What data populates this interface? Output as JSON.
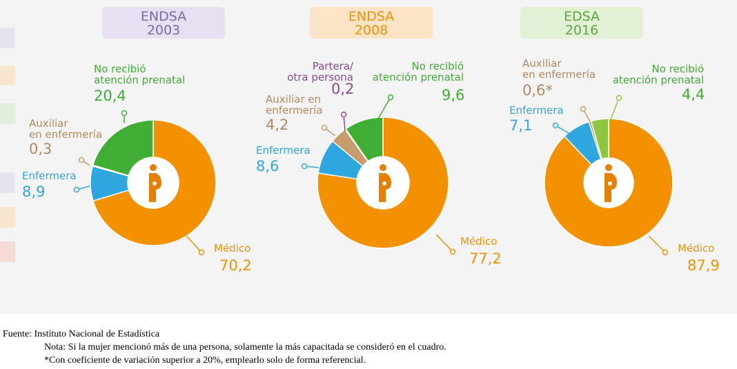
{
  "colors": {
    "medico": "#f39100",
    "enfermera": "#2ea7df",
    "auxiliar": "#c69c6d",
    "partera": "#8b4b8f",
    "no_recibio": "#3fae33",
    "no_recibio_2016": "#8dc63f",
    "center_icon": "#e67e00"
  },
  "chart_data": [
    {
      "type": "pie",
      "title": "ENDSA 2003",
      "title_line1": "ENDSA",
      "title_line2": "2003",
      "title_color": "#7b6aa8",
      "badge_bg": "#e6e0f0",
      "slices": [
        {
          "key": "medico",
          "label": "Médico",
          "value": 70.2,
          "value_text": "70,2",
          "color": "#f39100"
        },
        {
          "key": "enfermera",
          "label": "Enfermera",
          "value": 8.9,
          "value_text": "8,9",
          "color": "#2ea7df"
        },
        {
          "key": "auxiliar",
          "label": "Auxiliar en enfermería",
          "label_line1": "Auxiliar",
          "label_line2": "en enfermería",
          "value": 0.3,
          "value_text": "0,3",
          "color": "#c69c6d"
        },
        {
          "key": "no_recibio",
          "label": "No recibió atención prenatal",
          "label_line1": "No recibió",
          "label_line2": "atención prenatal",
          "value": 20.4,
          "value_text": "20,4",
          "color": "#3fae33"
        }
      ]
    },
    {
      "type": "pie",
      "title": "ENDSA 2008",
      "title_line1": "ENDSA",
      "title_line2": "2008",
      "title_color": "#f39100",
      "badge_bg": "#fde4c6",
      "slices": [
        {
          "key": "medico",
          "label": "Médico",
          "value": 77.2,
          "value_text": "77,2",
          "color": "#f39100"
        },
        {
          "key": "enfermera",
          "label": "Enfermera",
          "value": 8.6,
          "value_text": "8,6",
          "color": "#2ea7df"
        },
        {
          "key": "auxiliar",
          "label": "Auxiliar en enfermería",
          "label_line1": "Auxiliar en",
          "label_line2": "enfermería",
          "value": 4.2,
          "value_text": "4,2",
          "color": "#c69c6d"
        },
        {
          "key": "partera",
          "label": "Partera/ otra persona",
          "label_line1": "Partera/",
          "label_line2": "otra persona",
          "value": 0.2,
          "value_text": "0,2",
          "color": "#8b4b8f"
        },
        {
          "key": "no_recibio",
          "label": "No recibió atención prenatal",
          "label_line1": "No recibió",
          "label_line2": "atención prenatal",
          "value": 9.6,
          "value_text": "9,6",
          "color": "#3fae33"
        }
      ]
    },
    {
      "type": "pie",
      "title": "EDSA 2016",
      "title_line1": "EDSA",
      "title_line2": "2016",
      "title_color": "#5aa83c",
      "badge_bg": "#e2f0d6",
      "slices": [
        {
          "key": "medico",
          "label": "Médico",
          "value": 87.9,
          "value_text": "87,9",
          "color": "#f39100"
        },
        {
          "key": "enfermera",
          "label": "Enfermera",
          "value": 7.1,
          "value_text": "7,1",
          "color": "#2ea7df"
        },
        {
          "key": "auxiliar",
          "label": "Auxiliar en enfermería",
          "label_line1": "Auxiliar",
          "label_line2": "en enfermería",
          "value": 0.6,
          "value_text": "0,6*",
          "color": "#c69c6d"
        },
        {
          "key": "no_recibio",
          "label": "No recibió atención prenatal",
          "label_line1": "No recibió",
          "label_line2": "atención prenatal",
          "value": 4.4,
          "value_text": "4,4",
          "color": "#8dc63f"
        }
      ]
    }
  ],
  "footer": {
    "source": "Fuente: Instituto Nacional de Estadística",
    "note1": "Nota: Si la mujer mencionó más de una persona, solamente la más capacitada se consideró en el cuadro.",
    "note2": "*Con coeficiente de variación superior a 20%, emplearlo solo de forma referencial."
  }
}
